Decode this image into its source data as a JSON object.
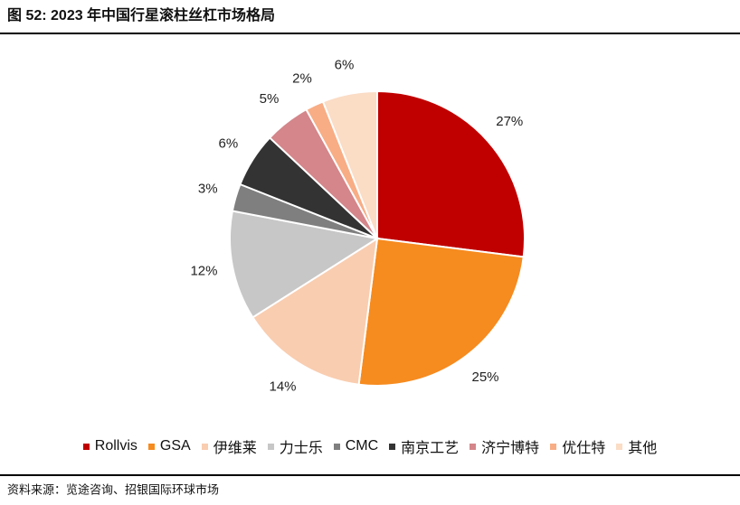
{
  "chart_data": {
    "type": "pie",
    "title": "图 52: 2023 年中国行星滚柱丝杠市场格局",
    "source": "资料来源：览途咨询、招银国际环球市场",
    "categories": [
      "Rollvis",
      "GSA",
      "伊维莱",
      "力士乐",
      "CMC",
      "南京工艺",
      "济宁博特",
      "优仕特",
      "其他"
    ],
    "values": [
      27,
      25,
      14,
      12,
      3,
      6,
      5,
      2,
      6
    ],
    "value_labels": [
      "27%",
      "25%",
      "14%",
      "12%",
      "3%",
      "6%",
      "5%",
      "2%",
      "6%"
    ],
    "colors": [
      "#c00000",
      "#f68b1f",
      "#f9cdb0",
      "#c7c7c7",
      "#7f7f7f",
      "#333333",
      "#d4868a",
      "#f8ad85",
      "#fbdcc5"
    ]
  }
}
